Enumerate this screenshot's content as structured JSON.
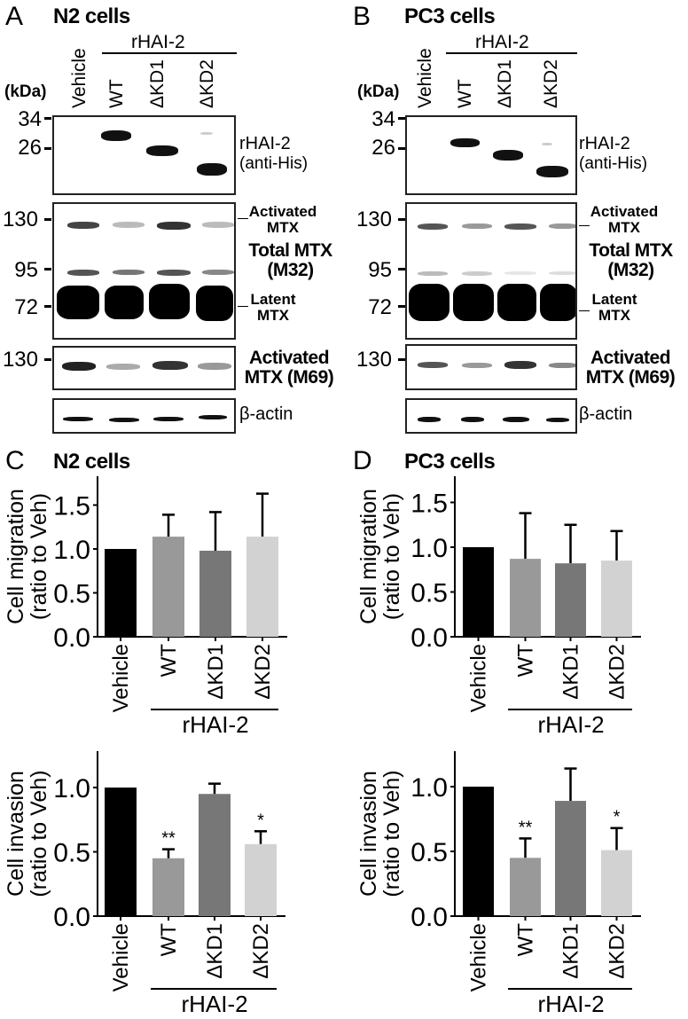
{
  "panels": {
    "A": {
      "letter": "A",
      "title": "N2 cells"
    },
    "B": {
      "letter": "B",
      "title": "PC3 cells"
    },
    "C": {
      "letter": "C",
      "title": "N2 cells"
    },
    "D": {
      "letter": "D",
      "title": "PC3 cells"
    }
  },
  "blot": {
    "lanes": [
      "Vehicle",
      "WT",
      "ΔKD1",
      "ΔKD2"
    ],
    "group_label": "rHAI-2",
    "kda_label": "(kDa)",
    "markers_top": [
      "34",
      "26"
    ],
    "markers_total": [
      "130",
      "95",
      "72"
    ],
    "markers_m69": [
      "130"
    ],
    "labels": {
      "rhai2": "rHAI-2",
      "anti_his": "(anti-His)",
      "activated_mtx_1": "Activated",
      "activated_mtx_2": "MTX",
      "total_mtx": "Total MTX",
      "m32": "(M32)",
      "latent_mtx_1": "Latent",
      "latent_mtx_2": "MTX",
      "activated_m69_1": "Activated",
      "activated_m69_2": "MTX (M69)",
      "beta_actin": "β-actin"
    }
  },
  "axis_labels": {
    "migration_1": "Cell migration",
    "migration_2": "(ratio to Veh)",
    "invasion_1": "Cell invasion",
    "invasion_2": "(ratio to Veh)"
  },
  "chart_data": [
    {
      "id": "C-migration",
      "type": "bar",
      "title": "N2 cells",
      "categories": [
        "Vehicle",
        "WT",
        "ΔKD1",
        "ΔKD2"
      ],
      "group_label": "rHAI-2",
      "values": [
        1.0,
        1.14,
        0.98,
        1.14
      ],
      "error_upper": [
        0,
        1.39,
        1.42,
        1.63
      ],
      "significance": [
        "",
        "",
        "",
        ""
      ],
      "ylabel": "Cell migration (ratio to Veh)",
      "yticks": [
        "0.0",
        "0.5",
        "1.0",
        "1.5"
      ],
      "ylim": [
        0,
        1.83
      ],
      "colors": [
        "#000000",
        "#999999",
        "#777777",
        "#d2d2d2"
      ]
    },
    {
      "id": "D-migration",
      "type": "bar",
      "title": "PC3 cells",
      "categories": [
        "Vehicle",
        "WT",
        "ΔKD1",
        "ΔKD2"
      ],
      "group_label": "rHAI-2",
      "values": [
        1.0,
        0.87,
        0.82,
        0.85
      ],
      "error_upper": [
        0,
        1.38,
        1.25,
        1.18
      ],
      "significance": [
        "",
        "",
        "",
        ""
      ],
      "ylabel": "Cell migration (ratio to Veh)",
      "yticks": [
        "0.0",
        "0.5",
        "1.0",
        "1.5"
      ],
      "ylim": [
        0,
        1.83
      ],
      "colors": [
        "#000000",
        "#999999",
        "#777777",
        "#d2d2d2"
      ]
    },
    {
      "id": "C-invasion",
      "type": "bar",
      "title": "N2 cells",
      "categories": [
        "Vehicle",
        "WT",
        "ΔKD1",
        "ΔKD2"
      ],
      "group_label": "rHAI-2",
      "values": [
        1.0,
        0.45,
        0.95,
        0.56
      ],
      "error_upper": [
        0,
        0.52,
        1.03,
        0.66
      ],
      "significance": [
        "",
        "**",
        "",
        "*"
      ],
      "ylabel": "Cell invasion (ratio to Veh)",
      "yticks": [
        "0.0",
        "0.5",
        "1.0"
      ],
      "ylim": [
        0,
        1.28
      ],
      "colors": [
        "#000000",
        "#999999",
        "#777777",
        "#d2d2d2"
      ]
    },
    {
      "id": "D-invasion",
      "type": "bar",
      "title": "PC3 cells",
      "categories": [
        "Vehicle",
        "WT",
        "ΔKD1",
        "ΔKD2"
      ],
      "group_label": "rHAI-2",
      "values": [
        1.0,
        0.45,
        0.89,
        0.51
      ],
      "error_upper": [
        0,
        0.6,
        1.14,
        0.68
      ],
      "significance": [
        "",
        "**",
        "",
        "*"
      ],
      "ylabel": "Cell invasion (ratio to Veh)",
      "yticks": [
        "0.0",
        "0.5",
        "1.0"
      ],
      "ylim": [
        0,
        1.28
      ],
      "colors": [
        "#000000",
        "#999999",
        "#777777",
        "#d2d2d2"
      ]
    }
  ]
}
